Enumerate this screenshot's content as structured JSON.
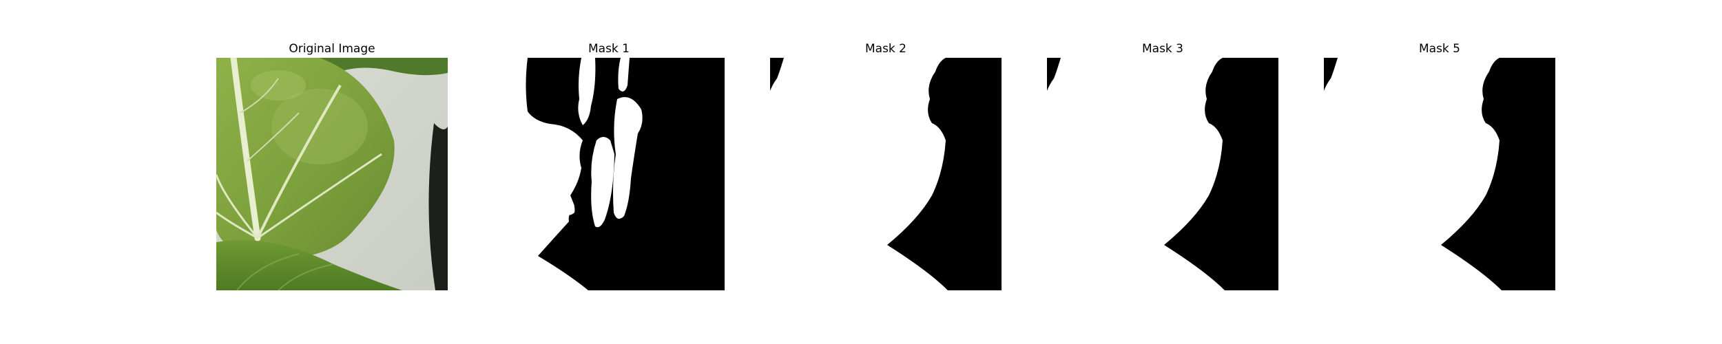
{
  "figure": {
    "panels": [
      {
        "title": "Original Image",
        "kind": "photo"
      },
      {
        "title": "Mask 1",
        "kind": "mask"
      },
      {
        "title": "Mask 2",
        "kind": "mask"
      },
      {
        "title": "Mask 3",
        "kind": "mask"
      },
      {
        "title": "Mask 5",
        "kind": "mask"
      }
    ],
    "colors": {
      "background": "#ffffff",
      "mask_foreground": "#ffffff",
      "mask_background": "#000000",
      "leaf_green": "#7ea03e",
      "vein": "#e8efcf"
    }
  }
}
